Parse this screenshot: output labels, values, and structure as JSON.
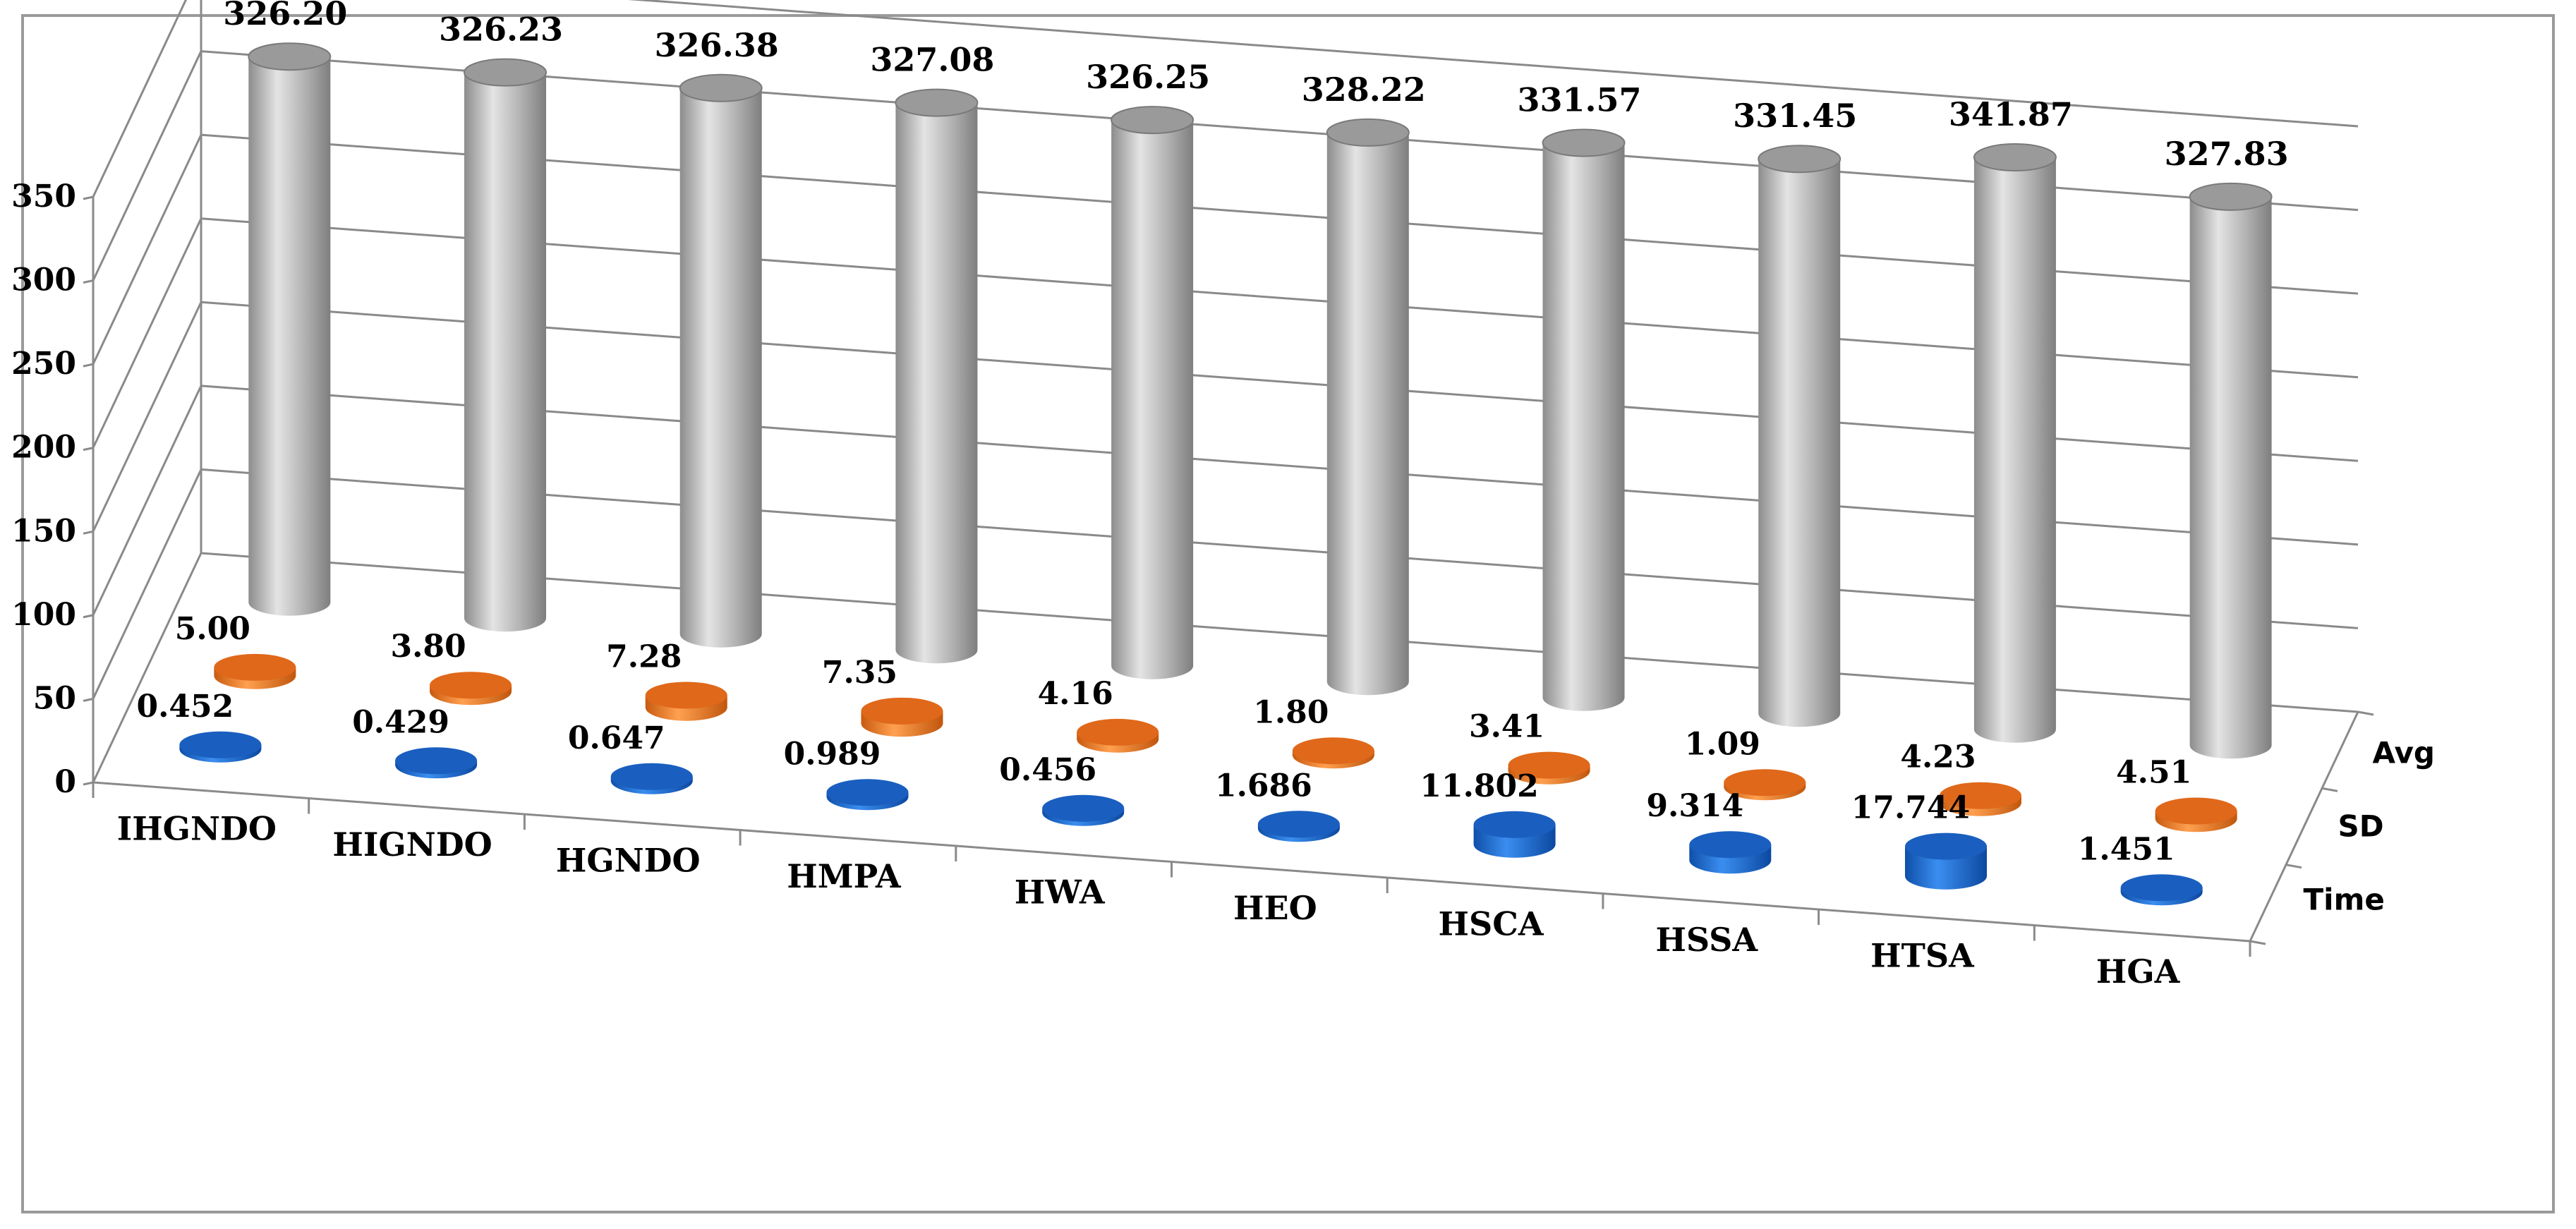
{
  "chart_data": {
    "type": "bar",
    "style": "3d-cylinder",
    "categories": [
      "IHGNDO",
      "HIGNDO",
      "HGNDO",
      "HMPA",
      "HWA",
      "HEO",
      "HSCA",
      "HSSA",
      "HTSA",
      "HGA"
    ],
    "series": [
      {
        "name": "Time",
        "values": [
          0.452,
          0.429,
          0.647,
          0.989,
          0.456,
          1.686,
          11.802,
          9.314,
          17.744,
          1.451
        ],
        "labels": [
          "0.452",
          "0.429",
          "0.647",
          "0.989",
          "0.456",
          "1.686",
          "11.802",
          "9.314",
          "17.744",
          "1.451"
        ],
        "color": "#1f6fd0"
      },
      {
        "name": "SD",
        "values": [
          5.0,
          3.8,
          7.28,
          7.35,
          4.16,
          1.8,
          3.41,
          1.09,
          4.23,
          4.51
        ],
        "labels": [
          "5.00",
          "3.80",
          "7.28",
          "7.35",
          "4.16",
          "1.80",
          "3.41",
          "1.09",
          "4.23",
          "4.51"
        ],
        "color": "#f07820"
      },
      {
        "name": "Avg",
        "values": [
          326.2,
          326.23,
          326.38,
          327.08,
          326.25,
          328.22,
          331.57,
          331.45,
          341.87,
          327.83
        ],
        "labels": [
          "326.20",
          "326.23",
          "326.38",
          "327.08",
          "326.25",
          "328.22",
          "331.57",
          "331.45",
          "341.87",
          "327.83"
        ],
        "color": "#a9a9a9"
      }
    ],
    "yticks": [
      "0",
      "50",
      "100",
      "150",
      "200",
      "250",
      "300",
      "350"
    ],
    "ylim": [
      0,
      350
    ],
    "title": "",
    "xlabel": "",
    "ylabel": "",
    "grid": true
  }
}
